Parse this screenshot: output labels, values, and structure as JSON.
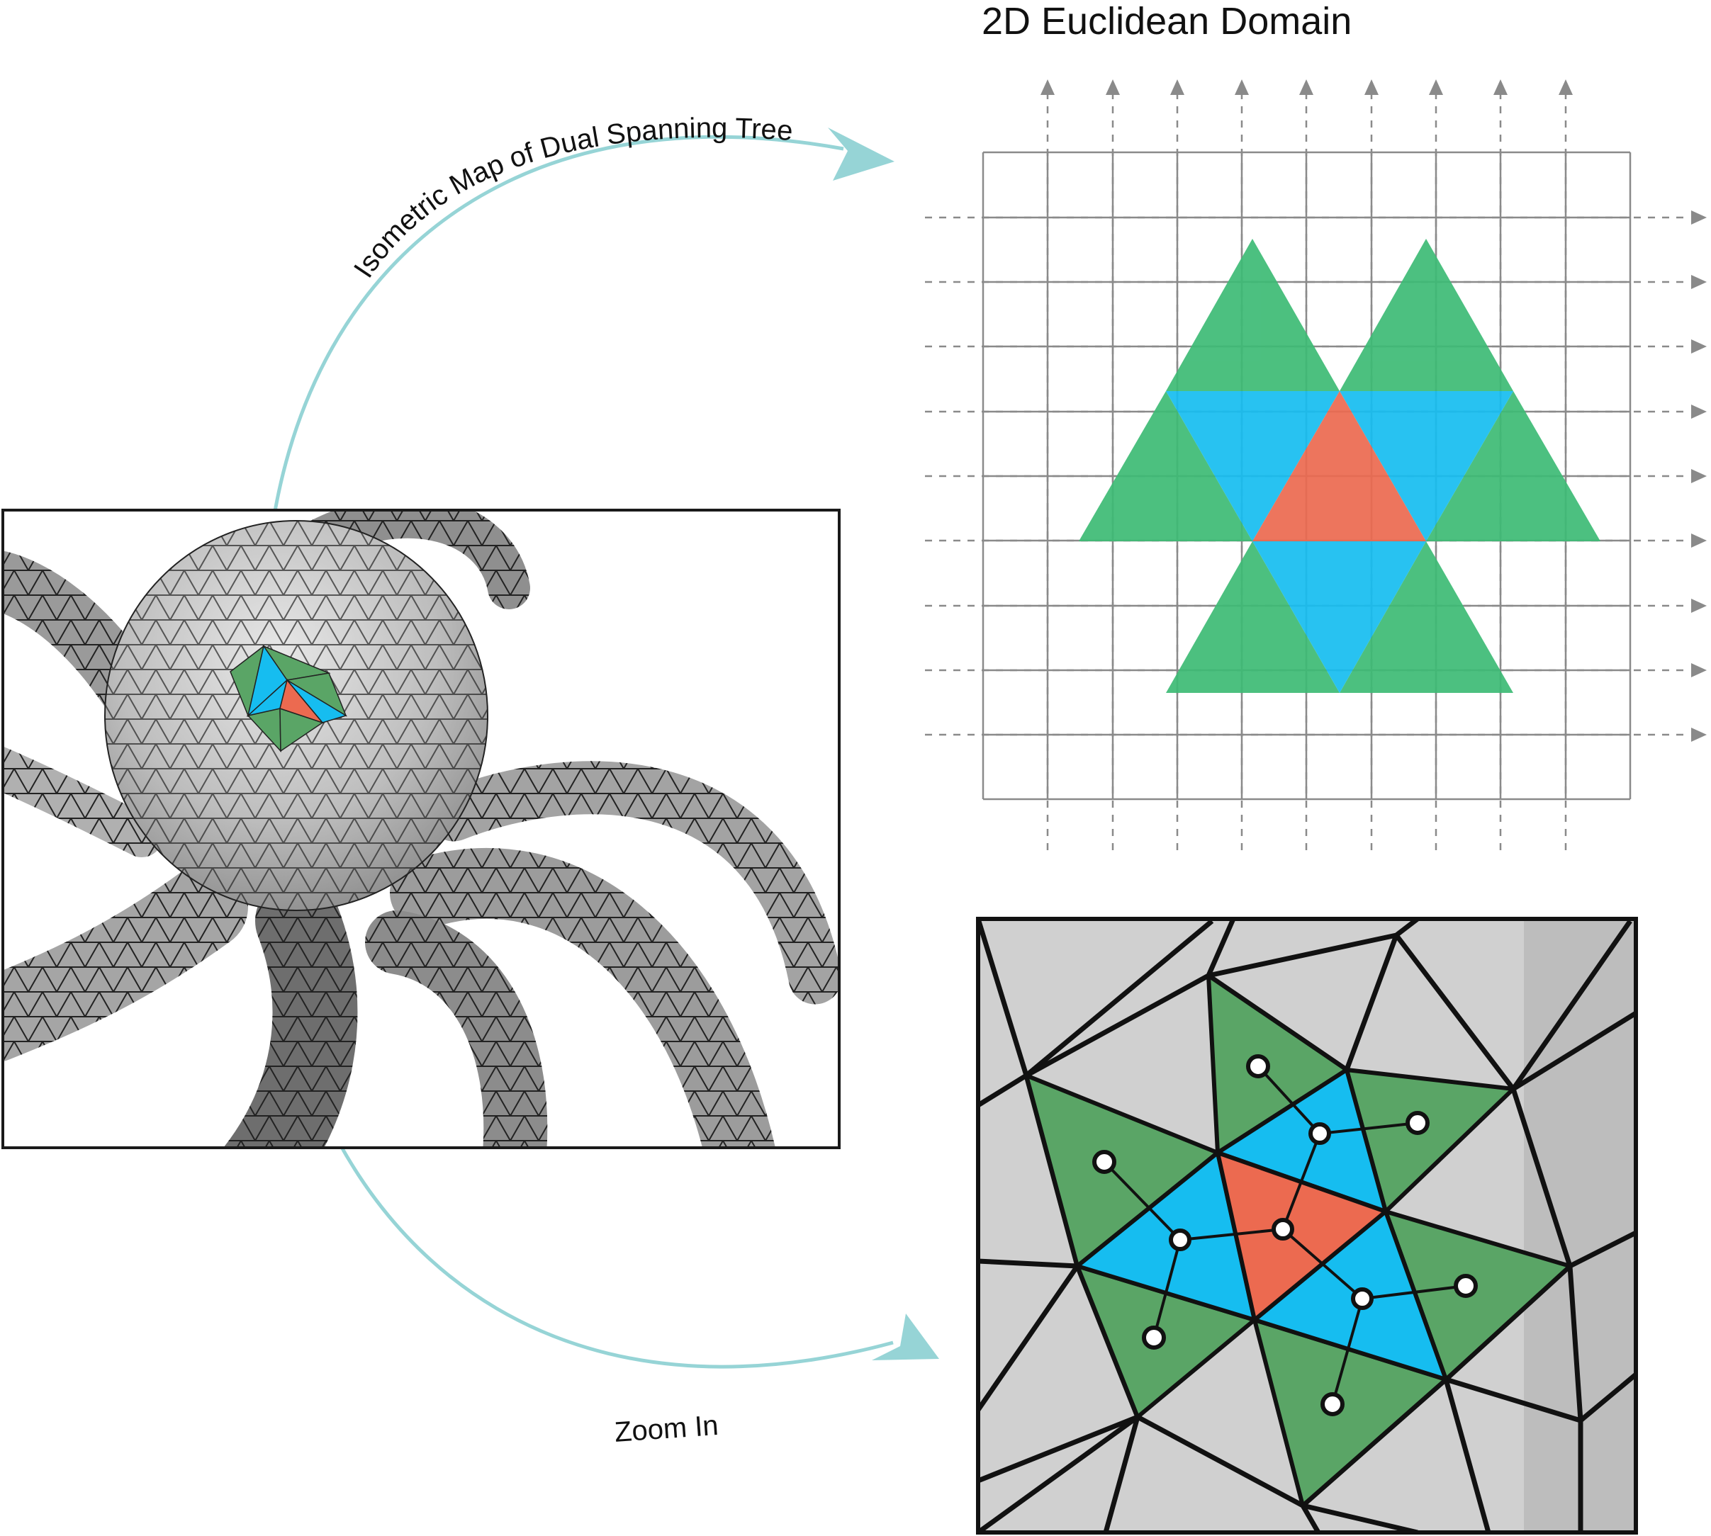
{
  "title": "2D Euclidean Domain",
  "arrow_top_label": "Isometric Map of  Dual Spanning Tree",
  "arrow_bottom_label": "Zoom In",
  "panels": {
    "mesh": "octopus-mesh-render",
    "grid": "euclidean-grid",
    "zoom": "zoomed-mesh-patch"
  },
  "colors": {
    "green": "#3dbb75",
    "green_dark": "#5aa566",
    "blue": "#16bdf0",
    "red": "#ec6a50",
    "arrow": "#96d4d6",
    "grid_line": "#8a8a8a",
    "mesh_gray": "#a8a8a8",
    "zoom_gray": "#d0d0d0"
  }
}
